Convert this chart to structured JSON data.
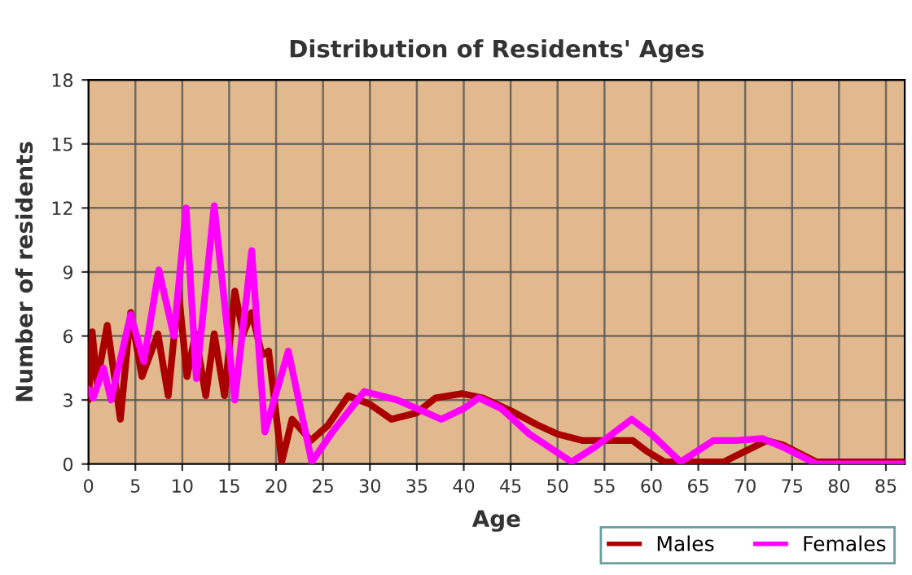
{
  "chart_data": {
    "type": "line",
    "title": "Distribution of Residents' Ages",
    "xlabel": "Age",
    "ylabel": "Number of residents",
    "xlim": [
      0,
      87
    ],
    "xticks": [
      0,
      5,
      10,
      15,
      20,
      25,
      30,
      35,
      40,
      45,
      50,
      55,
      60,
      65,
      70,
      75,
      80,
      85
    ],
    "ylim": [
      0,
      18
    ],
    "yticks": [
      0,
      3,
      6,
      9,
      12,
      15,
      18
    ],
    "grid": true,
    "legend": "bottom right",
    "line_style": "solid",
    "marker": "none",
    "series": [
      {
        "name": "Males",
        "color": "#aa0000",
        "x": [
          0,
          0.4,
          0.9,
          2,
          3.4,
          4.5,
          5.7,
          7.4,
          8.5,
          9.6,
          10.5,
          11.4,
          12.5,
          13.4,
          14.5,
          15.6,
          16.5,
          17.4,
          18.5,
          19.2,
          20.6,
          21.7,
          23.7,
          25.5,
          27.7,
          30,
          32.3,
          35,
          37,
          39.8,
          42,
          45,
          48,
          50,
          52.7,
          56,
          58,
          59.5,
          61.4,
          65,
          67.7,
          70,
          72.3,
          74,
          77.6,
          80,
          87
        ],
        "values": [
          3,
          6.2,
          3.8,
          6.5,
          2.1,
          7.1,
          4.1,
          6.1,
          3.2,
          8.1,
          4.1,
          6.1,
          3.2,
          6.1,
          3.2,
          8.1,
          6.1,
          7.1,
          5.1,
          5.3,
          0.1,
          2.1,
          1.1,
          1.8,
          3.2,
          2.8,
          2.1,
          2.4,
          3.1,
          3.3,
          3.1,
          2.5,
          1.8,
          1.4,
          1.1,
          1.1,
          1.1,
          0.6,
          0.1,
          0.1,
          0.1,
          0.6,
          1.1,
          0.9,
          0.1,
          0.1,
          0.1
        ]
      },
      {
        "name": "Females",
        "color": "#ff00ff",
        "x": [
          0,
          0.5,
          1.6,
          2.4,
          4.5,
          5.9,
          7.5,
          9.1,
          10.4,
          11.5,
          13.4,
          15.6,
          17.4,
          18.8,
          21.3,
          23.8,
          26,
          29.4,
          32.9,
          35,
          37.6,
          40,
          41.6,
          44,
          47,
          51.5,
          54,
          57.9,
          60,
          63.1,
          66.6,
          69,
          71.8,
          74,
          77.6,
          80,
          87
        ],
        "values": [
          3.5,
          3.1,
          4.5,
          3,
          7,
          4.8,
          9.1,
          6,
          12,
          4,
          12.1,
          3,
          10,
          1.5,
          5.3,
          0.1,
          1.5,
          3.4,
          3,
          2.6,
          2.1,
          2.6,
          3.1,
          2.6,
          1.4,
          0.1,
          0.8,
          2.1,
          1.4,
          0.1,
          1.1,
          1.1,
          1.2,
          0.8,
          0,
          0,
          0
        ]
      }
    ]
  }
}
